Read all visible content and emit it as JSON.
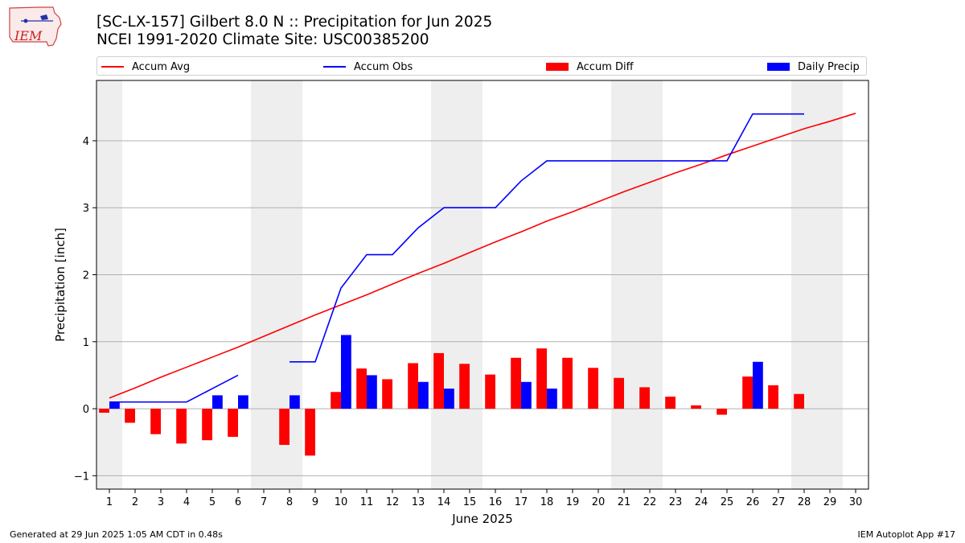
{
  "header": {
    "title_line1": "[SC-LX-157] Gilbert 8.0 N :: Precipitation for Jun 2025",
    "title_line2": "NCEI 1991-2020 Climate Site: USC00385200",
    "logo_text": "IEM"
  },
  "legend": [
    {
      "label": "Accum Avg",
      "kind": "line",
      "color": "#ff0000"
    },
    {
      "label": "Accum Obs",
      "kind": "line",
      "color": "#0000ff"
    },
    {
      "label": "Accum Diff",
      "kind": "patch",
      "color": "#ff0000"
    },
    {
      "label": "Daily Precip",
      "kind": "patch",
      "color": "#0000ff"
    }
  ],
  "footer": {
    "left": "Generated at 29 Jun 2025 1:05 AM CDT in 0.48s",
    "right": "IEM Autoplot App #17"
  },
  "chart_data": {
    "type": "bar",
    "xlabel": "June 2025",
    "ylabel": "Precipitation [inch]",
    "xlim": [
      0.5,
      30.5
    ],
    "ylim": [
      -1.2,
      4.9
    ],
    "x_ticks": [
      1,
      2,
      3,
      4,
      5,
      6,
      7,
      8,
      9,
      10,
      11,
      12,
      13,
      14,
      15,
      16,
      17,
      18,
      19,
      20,
      21,
      22,
      23,
      24,
      25,
      26,
      27,
      28,
      29,
      30
    ],
    "y_ticks": [
      -1,
      0,
      1,
      2,
      3,
      4
    ],
    "grid": "horizontal",
    "weekend_shading": [
      [
        0.5,
        1.5
      ],
      [
        6.5,
        8.5
      ],
      [
        13.5,
        15.5
      ],
      [
        20.5,
        22.5
      ],
      [
        27.5,
        29.5
      ]
    ],
    "accum_avg": {
      "name": "Accum Avg",
      "color": "#ff0000",
      "x": [
        1,
        2,
        3,
        4,
        5,
        6,
        7,
        8,
        9,
        10,
        11,
        12,
        13,
        14,
        15,
        16,
        17,
        18,
        19,
        20,
        21,
        22,
        23,
        24,
        25,
        26,
        27,
        28,
        29,
        30
      ],
      "y": [
        0.16,
        0.31,
        0.47,
        0.62,
        0.77,
        0.92,
        1.08,
        1.24,
        1.4,
        1.55,
        1.7,
        1.86,
        2.02,
        2.17,
        2.33,
        2.49,
        2.64,
        2.8,
        2.94,
        3.09,
        3.24,
        3.38,
        3.52,
        3.65,
        3.79,
        3.92,
        4.05,
        4.18,
        4.29,
        4.41
      ]
    },
    "accum_obs": {
      "name": "Accum Obs",
      "color": "#0000ff",
      "segments": [
        {
          "x": [
            1,
            2,
            3,
            4,
            5,
            6
          ],
          "y": [
            0.1,
            0.1,
            0.1,
            0.1,
            0.3,
            0.5
          ]
        },
        {
          "x": [
            8,
            9,
            10,
            11,
            12,
            13,
            14,
            15,
            16,
            17,
            18,
            19,
            20,
            21,
            22,
            23,
            24,
            25,
            26,
            27,
            28
          ],
          "y": [
            0.7,
            0.7,
            1.8,
            2.3,
            2.3,
            2.7,
            3.0,
            3.0,
            3.0,
            3.4,
            3.7,
            3.7,
            3.7,
            3.7,
            3.7,
            3.7,
            3.7,
            3.7,
            4.4,
            4.4,
            4.4
          ]
        }
      ]
    },
    "accum_diff": {
      "name": "Accum Diff",
      "color": "#ff0000",
      "x": [
        1,
        2,
        3,
        4,
        5,
        6,
        8,
        9,
        10,
        11,
        12,
        13,
        14,
        15,
        16,
        17,
        18,
        19,
        20,
        21,
        22,
        23,
        24,
        25,
        26,
        27,
        28
      ],
      "values": [
        -0.06,
        -0.21,
        -0.38,
        -0.52,
        -0.47,
        -0.42,
        -0.54,
        -0.7,
        0.25,
        0.6,
        0.44,
        0.68,
        0.83,
        0.67,
        0.51,
        0.76,
        0.9,
        0.76,
        0.61,
        0.46,
        0.32,
        0.18,
        0.05,
        -0.09,
        0.48,
        0.35,
        0.22
      ]
    },
    "daily_precip": {
      "name": "Daily Precip",
      "color": "#0000ff",
      "x": [
        1,
        5,
        6,
        8,
        10,
        11,
        13,
        14,
        17,
        18,
        26
      ],
      "values": [
        0.1,
        0.2,
        0.2,
        0.2,
        1.1,
        0.5,
        0.4,
        0.3,
        0.4,
        0.3,
        0.7
      ]
    }
  }
}
